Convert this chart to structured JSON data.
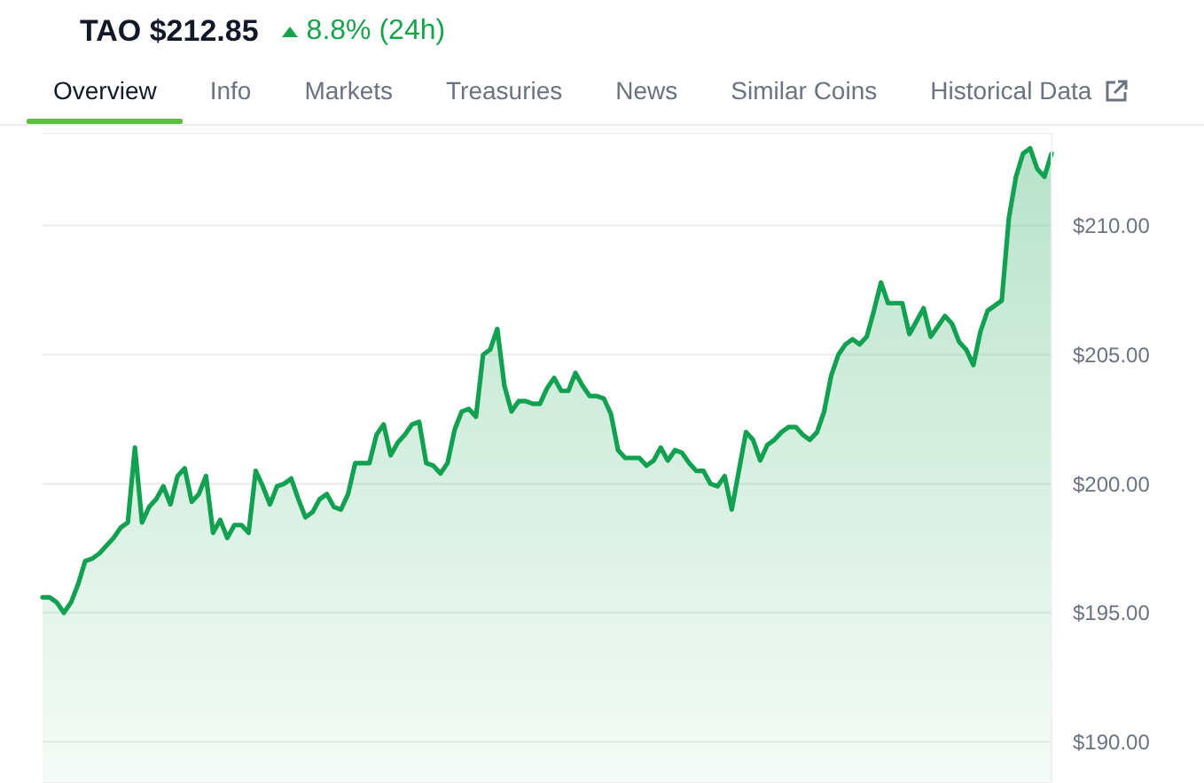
{
  "chart_data": {
    "type": "area",
    "title": "TAO $212.85",
    "subtitle": "8.8% (24h)",
    "annotations": [
      "Overview",
      "Info",
      "Markets",
      "Treasuries",
      "News",
      "Similar Coins",
      "Historical Data"
    ],
    "categories": [
      null,
      null,
      null,
      null,
      null,
      null,
      null,
      null,
      null,
      null,
      null,
      null,
      null,
      null,
      null,
      null,
      null,
      null,
      null,
      null,
      null,
      null,
      null,
      null,
      null,
      null,
      null,
      null,
      null,
      null,
      null,
      null,
      null,
      null,
      null,
      null,
      null,
      null,
      null,
      null,
      null,
      null,
      null,
      null,
      null,
      null,
      null,
      null,
      null,
      null,
      null,
      null,
      null,
      null,
      null,
      null,
      null,
      null,
      null,
      null,
      null,
      null,
      null,
      null,
      null,
      null,
      null,
      null,
      null,
      null,
      null,
      null,
      null,
      null,
      null,
      null,
      null,
      null,
      null,
      null,
      null,
      null,
      null,
      null,
      null,
      null,
      null,
      null,
      null,
      null,
      null,
      null,
      null,
      null,
      null,
      null,
      null,
      null,
      null,
      null,
      null,
      null,
      null,
      null,
      null,
      null,
      null,
      null,
      null,
      null,
      null,
      null,
      null,
      null,
      null,
      null,
      null,
      null,
      null,
      null,
      null,
      null,
      null,
      null,
      null,
      null,
      null,
      null,
      null,
      null,
      null,
      null,
      null,
      null,
      null,
      null,
      null,
      null,
      null,
      null,
      null,
      null,
      null
    ],
    "values": [
      195.6,
      195.6,
      195.4,
      195.0,
      195.4,
      196.1,
      197.0,
      197.1,
      197.3,
      197.6,
      197.9,
      198.3,
      198.5,
      201.4,
      198.5,
      199.1,
      199.4,
      199.9,
      199.2,
      200.3,
      200.6,
      199.3,
      199.6,
      200.3,
      198.1,
      198.6,
      197.9,
      198.4,
      198.4,
      198.1,
      200.5,
      199.9,
      199.2,
      199.9,
      200.0,
      200.2,
      199.4,
      198.7,
      198.9,
      199.4,
      199.6,
      199.1,
      199.0,
      199.6,
      200.8,
      200.8,
      200.8,
      201.9,
      202.3,
      201.1,
      201.6,
      201.9,
      202.3,
      202.4,
      200.8,
      200.7,
      200.4,
      200.8,
      202.1,
      202.8,
      202.9,
      202.6,
      205.0,
      205.2,
      206.0,
      203.8,
      202.8,
      203.2,
      203.2,
      203.1,
      203.1,
      203.7,
      204.1,
      203.6,
      203.6,
      204.3,
      203.8,
      203.4,
      203.4,
      203.3,
      202.7,
      201.3,
      201.0,
      201.0,
      201.0,
      200.7,
      200.9,
      201.4,
      200.9,
      201.3,
      201.2,
      200.8,
      200.5,
      200.5,
      200.0,
      199.9,
      200.3,
      199.0,
      200.5,
      202.0,
      201.7,
      200.9,
      201.5,
      201.7,
      202.0,
      202.2,
      202.2,
      201.9,
      201.7,
      202.0,
      202.8,
      204.2,
      205.0,
      205.4,
      205.6,
      205.4,
      205.7,
      206.7,
      207.8,
      207.0,
      207.0,
      207.0,
      205.8,
      206.3,
      206.8,
      205.7,
      206.1,
      206.5,
      206.2,
      205.5,
      205.2,
      204.6,
      205.9,
      206.7,
      206.9,
      207.1,
      210.3,
      211.9,
      212.8,
      213.0,
      212.2,
      211.9,
      212.8
    ],
    "color": "#12a150",
    "ylim": [
      188.4,
      213.6
    ],
    "yticks": [
      {
        "value": 190,
        "label": "$190.00"
      },
      {
        "value": 195,
        "label": "$195.00"
      },
      {
        "value": 200,
        "label": "$200.00"
      },
      {
        "value": 205,
        "label": "$205.00"
      },
      {
        "value": 210,
        "label": "$210.00"
      }
    ],
    "grid": "y",
    "tick_labels": "y"
  }
}
